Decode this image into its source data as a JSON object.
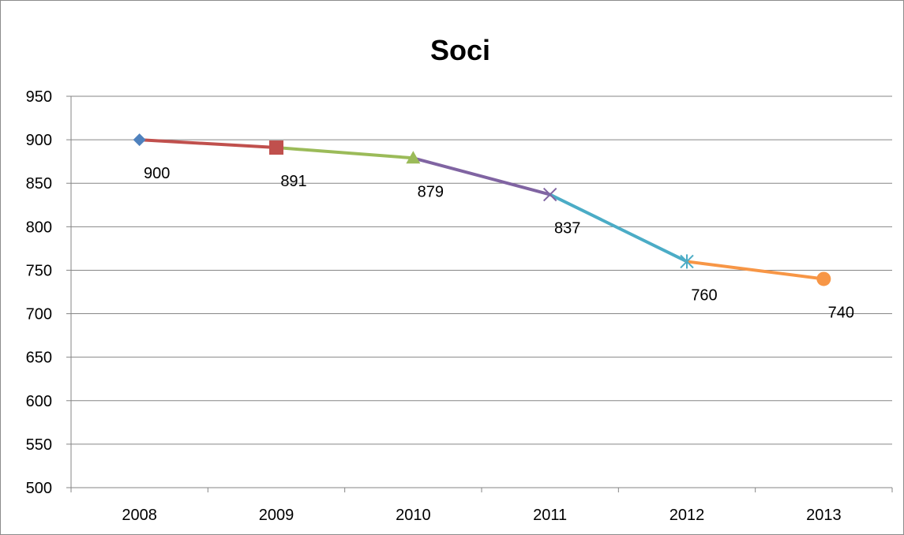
{
  "chart_data": {
    "type": "line",
    "title": "Soci",
    "xlabel": "",
    "ylabel": "",
    "categories": [
      "2008",
      "2009",
      "2010",
      "2011",
      "2012",
      "2013"
    ],
    "values": [
      900,
      891,
      879,
      837,
      760,
      740
    ],
    "data_labels": [
      "900",
      "891",
      "879",
      "837",
      "760",
      "740"
    ],
    "ylim": [
      500,
      950
    ],
    "yticks": [
      500,
      550,
      600,
      650,
      700,
      750,
      800,
      850,
      900,
      950
    ],
    "grid": true,
    "legend": "none",
    "segment_colors": [
      "#c0504d",
      "#9bbb59",
      "#8064a2",
      "#4bacc6",
      "#f79646"
    ],
    "point_colors": [
      "#4f81bd",
      "#c0504d",
      "#9bbb59",
      "#8064a2",
      "#4bacc6",
      "#f79646"
    ],
    "point_markers": [
      "diamond",
      "square",
      "triangle",
      "x",
      "asterisk",
      "circle"
    ]
  }
}
